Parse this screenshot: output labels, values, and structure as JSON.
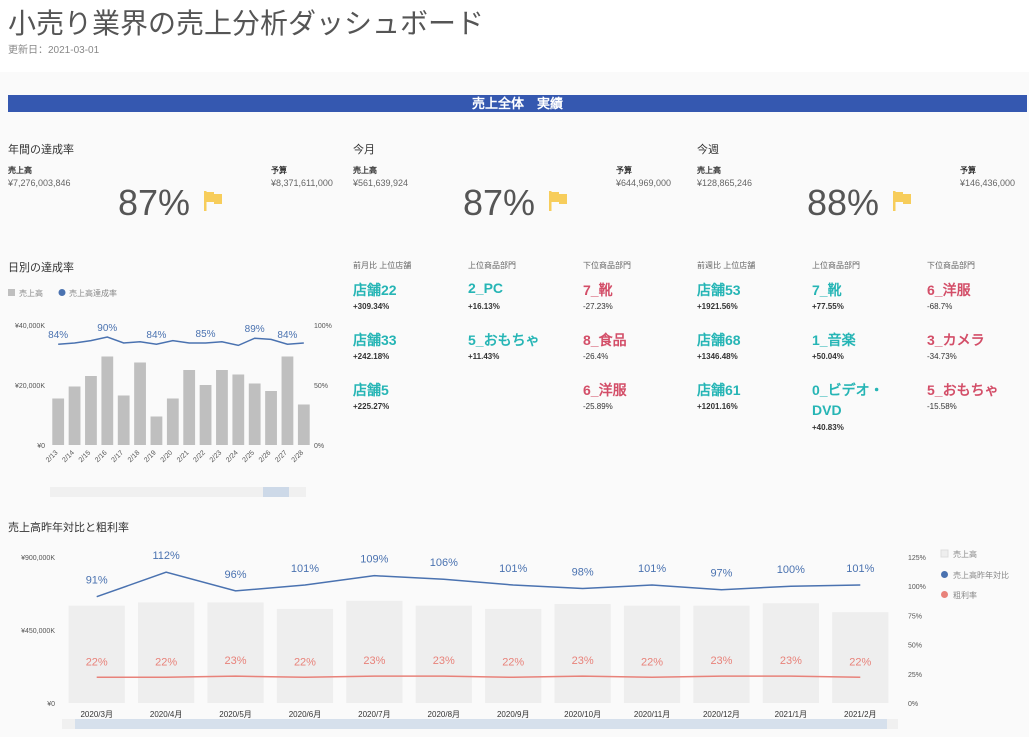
{
  "title": "小売り業界の売上分析ダッシュボード",
  "updated": "更新日：2021-03-01",
  "banner": "売上全体　実績",
  "kpis": [
    {
      "title": "年間の達成率",
      "sales_label": "売上高",
      "sales": "¥7,276,003,846",
      "budget_label": "予算",
      "budget": "¥8,371,611,000",
      "pct": "87%",
      "flag_color": "#f7cd5b"
    },
    {
      "title": "今月",
      "sales_label": "売上高",
      "sales": "¥561,639,924",
      "budget_label": "予算",
      "budget": "¥644,969,000",
      "pct": "87%",
      "flag_color": "#f7cd5b"
    },
    {
      "title": "今週",
      "sales_label": "売上高",
      "sales": "¥128,865,246",
      "budget_label": "予算",
      "budget": "¥146,436,000",
      "pct": "88%",
      "flag_color": "#f7cd5b"
    }
  ],
  "rankings": [
    {
      "header": "前月比 上位店舗",
      "color": "teal",
      "items": [
        {
          "name": "店舗22",
          "change": "+309.34%"
        },
        {
          "name": "店舗33",
          "change": "+242.18%"
        },
        {
          "name": "店舗5",
          "change": "+225.27%"
        }
      ]
    },
    {
      "header": "上位商品部門",
      "color": "teal",
      "items": [
        {
          "name": "2_PC",
          "change": "+16.13%"
        },
        {
          "name": "5_おもちゃ",
          "change": "+11.43%"
        }
      ]
    },
    {
      "header": "下位商品部門",
      "color": "red",
      "items": [
        {
          "name": "7_靴",
          "change": "-27.23%"
        },
        {
          "name": "8_食品",
          "change": "-26.4%"
        },
        {
          "name": "6_洋服",
          "change": "-25.89%"
        }
      ]
    },
    {
      "header": "前週比 上位店舗",
      "color": "teal",
      "items": [
        {
          "name": "店舗53",
          "change": "+1921.56%"
        },
        {
          "name": "店舗68",
          "change": "+1346.48%"
        },
        {
          "name": "店舗61",
          "change": "+1201.16%"
        }
      ]
    },
    {
      "header": "上位商品部門",
      "color": "teal",
      "items": [
        {
          "name": "7_靴",
          "change": "+77.55%"
        },
        {
          "name": "1_音楽",
          "change": "+50.04%"
        },
        {
          "name": "0_ビデオ・DVD",
          "name2": "DVD",
          "change": "+40.83%"
        }
      ]
    },
    {
      "header": "下位商品部門",
      "color": "red",
      "items": [
        {
          "name": "6_洋服",
          "change": "-68.7%"
        },
        {
          "name": "3_カメラ",
          "change": "-34.73%"
        },
        {
          "name": "5_おもちゃ",
          "change": "-15.58%"
        }
      ]
    }
  ],
  "chart_data": [
    {
      "type": "bar",
      "title": "日別の達成率",
      "legend": [
        "売上高",
        "売上高達成率"
      ],
      "categories": [
        "2/13",
        "2/14",
        "2/15",
        "2/16",
        "2/17",
        "2/18",
        "2/19",
        "2/20",
        "2/21",
        "2/22",
        "2/23",
        "2/24",
        "2/25",
        "2/26",
        "2/27",
        "2/28"
      ],
      "series": [
        {
          "name": "売上高",
          "axis": "left",
          "values": [
            15500,
            19500,
            23000,
            29500,
            16500,
            27500,
            9500,
            15500,
            25000,
            20000,
            25000,
            23500,
            20500,
            18000,
            29500,
            13500
          ]
        },
        {
          "name": "売上高達成率",
          "axis": "right",
          "values": [
            84,
            85,
            87,
            90,
            85,
            86,
            84,
            87,
            85,
            85,
            86,
            83,
            89,
            88,
            84,
            85
          ]
        }
      ],
      "point_labels": [
        {
          "index": 0,
          "text": "84%"
        },
        {
          "index": 3,
          "text": "90%"
        },
        {
          "index": 6,
          "text": "84%"
        },
        {
          "index": 9,
          "text": "85%"
        },
        {
          "index": 12,
          "text": "89%"
        },
        {
          "index": 14,
          "text": "84%"
        }
      ],
      "y_ticks": [
        "¥0",
        "¥20,000K",
        "¥40,000K"
      ],
      "y_right_ticks": [
        "0%",
        "50%",
        "100%"
      ],
      "ylim": [
        0,
        40000
      ],
      "y_right_lim": [
        0,
        100
      ]
    },
    {
      "type": "bar",
      "title": "売上高昨年対比と粗利率",
      "legend": [
        "売上高",
        "売上高昨年対比",
        "粗利率"
      ],
      "categories": [
        "2020/3月",
        "2020/4月",
        "2020/5月",
        "2020/6月",
        "2020/7月",
        "2020/8月",
        "2020/9月",
        "2020/10月",
        "2020/11月",
        "2020/12月",
        "2021/1月",
        "2021/2月"
      ],
      "series": [
        {
          "name": "売上高",
          "axis": "left",
          "values": [
            600000,
            620000,
            620000,
            580000,
            630000,
            600000,
            580000,
            610000,
            600000,
            600000,
            615000,
            560000
          ]
        },
        {
          "name": "売上高昨年対比",
          "axis": "right",
          "values": [
            91,
            112,
            96,
            101,
            109,
            106,
            101,
            98,
            101,
            97,
            100,
            101
          ],
          "labels": [
            "91%",
            "112%",
            "96%",
            "101%",
            "109%",
            "106%",
            "101%",
            "98%",
            "101%",
            "97%",
            "100%",
            "101%"
          ]
        },
        {
          "name": "粗利率",
          "axis": "right",
          "values": [
            22,
            22,
            23,
            22,
            23,
            23,
            22,
            23,
            22,
            23,
            23,
            22
          ],
          "labels": [
            "22%",
            "22%",
            "23%",
            "22%",
            "23%",
            "23%",
            "22%",
            "23%",
            "22%",
            "23%",
            "23%",
            "22%"
          ]
        }
      ],
      "y_ticks": [
        "¥0",
        "¥450,000K",
        "¥900,000K"
      ],
      "y_right_ticks": [
        "0%",
        "25%",
        "50%",
        "75%",
        "100%",
        "125%"
      ],
      "ylim": [
        0,
        900000
      ],
      "y_right_lim": [
        0,
        125
      ]
    }
  ],
  "colors": {
    "bar_gray": "#bfbfbf",
    "bar_light": "#eeeeee",
    "line_blue": "#4a72b0",
    "line_red": "#e8827a",
    "teal": "#26b5b5",
    "red": "#d34e68"
  }
}
